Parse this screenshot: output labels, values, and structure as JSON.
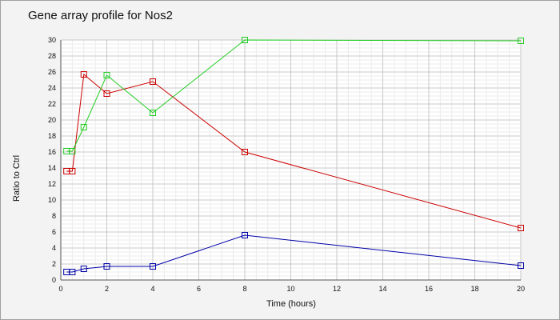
{
  "chart_data": {
    "type": "line",
    "title": "Gene array profile for Nos2",
    "xlabel": "Time (hours)",
    "ylabel": "Ratio to Ctrl",
    "xlim": [
      0,
      20
    ],
    "ylim": [
      0,
      30
    ],
    "xticks": [
      0,
      2,
      4,
      6,
      8,
      10,
      12,
      14,
      16,
      18,
      20
    ],
    "yticks": [
      0,
      2,
      4,
      6,
      8,
      10,
      12,
      14,
      16,
      18,
      20,
      22,
      24,
      26,
      28,
      30
    ],
    "grid": true,
    "legend": "none",
    "series": [
      {
        "color": "#cc0000",
        "x": [
          0.25,
          0.5,
          1,
          2,
          4,
          8,
          20
        ],
        "y": [
          13.6,
          13.6,
          25.7,
          23.3,
          24.8,
          16.0,
          6.5
        ]
      },
      {
        "color": "#22cc22",
        "x": [
          0.25,
          0.5,
          1,
          2,
          4,
          8,
          20
        ],
        "y": [
          16.1,
          16.1,
          19.1,
          25.6,
          20.9,
          30.0,
          29.9
        ]
      },
      {
        "color": "#0000aa",
        "x": [
          0.25,
          0.5,
          1,
          2,
          4,
          8,
          20
        ],
        "y": [
          1.0,
          1.0,
          1.4,
          1.7,
          1.7,
          5.6,
          1.8
        ]
      }
    ]
  }
}
